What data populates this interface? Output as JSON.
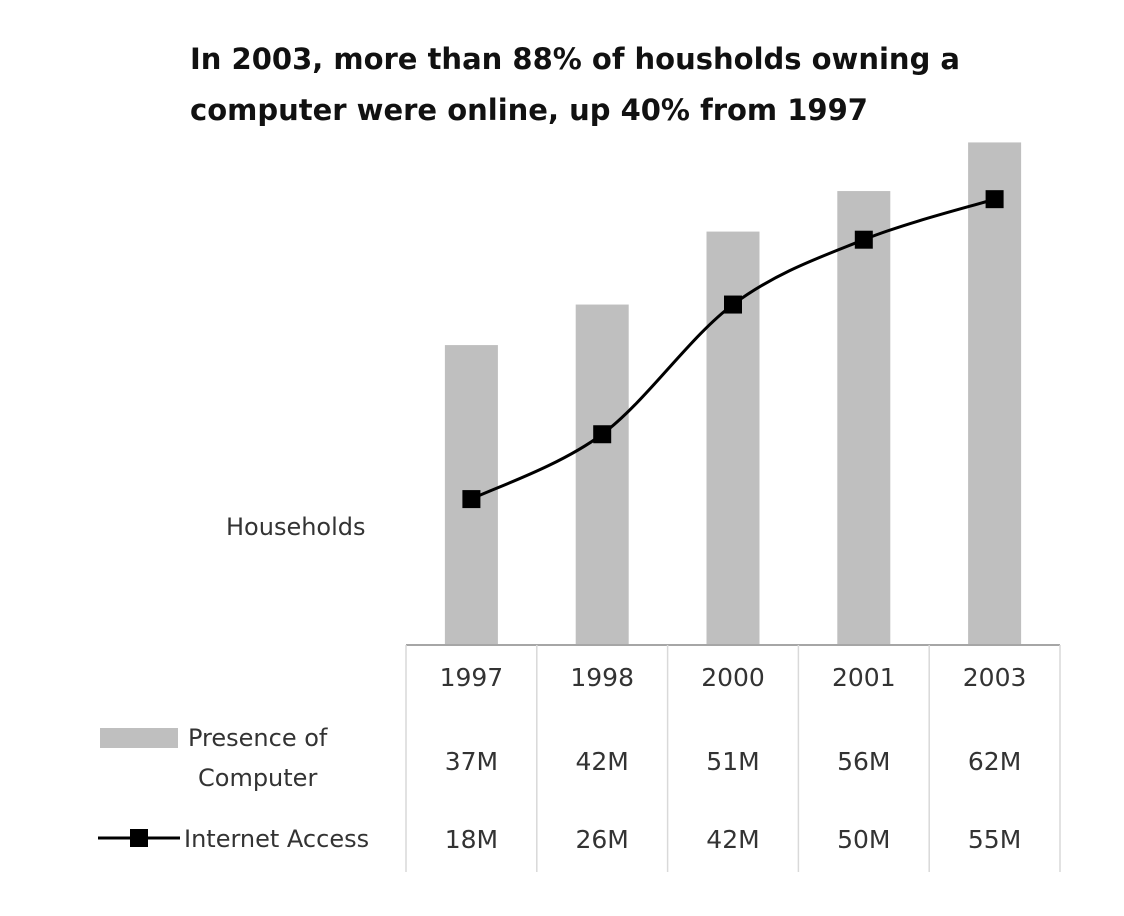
{
  "chart_data": {
    "type": "bar",
    "title_lines": [
      "In 2003, more than 88% of housholds owning a",
      "computer were online, up 40% from 1997"
    ],
    "ylabel": "Households",
    "categories": [
      "1997",
      "1998",
      "2000",
      "2001",
      "2003"
    ],
    "ylim": [
      0,
      66
    ],
    "series": [
      {
        "name": "Presence of Computer",
        "name_lines": [
          "Presence of",
          "Computer"
        ],
        "kind": "bar",
        "color": "#bfbfbf",
        "values": [
          37,
          42,
          51,
          56,
          62
        ],
        "labels": [
          "37M",
          "42M",
          "51M",
          "56M",
          "62M"
        ]
      },
      {
        "name": "Internet Access",
        "name_lines": [
          "Internet Access"
        ],
        "kind": "line",
        "color": "#000000",
        "values": [
          18,
          26,
          42,
          50,
          55
        ],
        "labels": [
          "18M",
          "26M",
          "42M",
          "50M",
          "55M"
        ]
      }
    ],
    "legend": "bottom-left data table",
    "grid": false
  }
}
